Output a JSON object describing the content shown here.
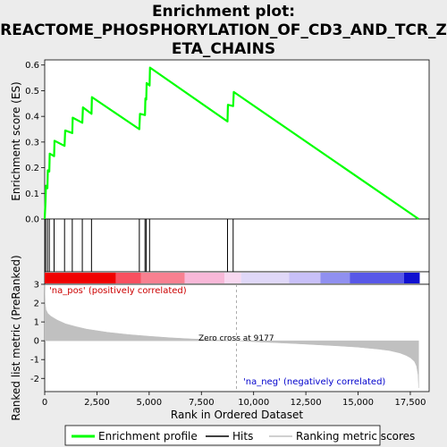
{
  "chart_data": {
    "type": "line",
    "title_line1": "Enrichment plot:",
    "title_line2": "REACTOME_PHOSPHORYLATION_OF_CD3_AND_TCR_Z",
    "title_line3": "ETA_CHAINS",
    "top_panel": {
      "ylabel": "Enrichment score (ES)",
      "ylim": [
        0,
        0.62
      ],
      "yticks": [
        0.0,
        0.1,
        0.2,
        0.3,
        0.4,
        0.5,
        0.6
      ],
      "ytick_labels": [
        "0.0",
        "0.1",
        "0.2",
        "0.3",
        "0.4",
        "0.5",
        "0.6"
      ],
      "grid": false,
      "series": [
        {
          "name": "Enrichment profile",
          "color": "#00ff00",
          "x": [
            0,
            40,
            60,
            130,
            150,
            220,
            240,
            450,
            470,
            950,
            980,
            1320,
            1340,
            1800,
            1830,
            2240,
            2260,
            4530,
            4560,
            4800,
            4820,
            4860,
            4880,
            5020,
            5040,
            8750,
            8770,
            9020,
            9050,
            17900
          ],
          "y": [
            0.0,
            0.07,
            0.13,
            0.12,
            0.19,
            0.185,
            0.255,
            0.245,
            0.305,
            0.285,
            0.345,
            0.335,
            0.395,
            0.375,
            0.435,
            0.41,
            0.475,
            0.35,
            0.41,
            0.405,
            0.47,
            0.465,
            0.53,
            0.52,
            0.59,
            0.38,
            0.445,
            0.44,
            0.495,
            0.0
          ]
        }
      ]
    },
    "hits": {
      "name": "Hits",
      "color": "#000000",
      "positions": [
        40,
        130,
        220,
        450,
        950,
        1320,
        1800,
        2240,
        4530,
        4800,
        4860,
        5020,
        8750,
        9020
      ]
    },
    "bottom_panel": {
      "ylabel": "Ranked list metric (PreRanked)",
      "xlabel": "Rank in Ordered Dataset",
      "ylim": [
        -2.7,
        3.0
      ],
      "yticks": [
        -2,
        -1,
        0,
        1,
        2,
        3
      ],
      "ytick_labels": [
        "-2",
        "-1",
        "0",
        "1",
        "2",
        "3"
      ],
      "xlim": [
        0,
        18400
      ],
      "xticks": [
        0,
        2500,
        5000,
        7500,
        10000,
        12500,
        15000,
        17500
      ],
      "xtick_labels": [
        "0",
        "2,500",
        "5,000",
        "7,500",
        "10,000",
        "12,500",
        "15,000",
        "17,500"
      ],
      "series": [
        {
          "name": "Ranking metric scores",
          "color": "#c0c0c0",
          "x": [
            0,
            20,
            60,
            150,
            300,
            600,
            1000,
            1500,
            2000,
            3000,
            4000,
            5000,
            6000,
            7000,
            8000,
            9177,
            10000,
            11000,
            12000,
            13000,
            14000,
            15000,
            16000,
            16500,
            17000,
            17300,
            17500,
            17700,
            17800,
            17870,
            17900
          ],
          "y": [
            3.0,
            2.0,
            1.65,
            1.45,
            1.3,
            1.1,
            0.9,
            0.75,
            0.62,
            0.45,
            0.33,
            0.24,
            0.16,
            0.1,
            0.05,
            0.0,
            -0.05,
            -0.1,
            -0.15,
            -0.21,
            -0.27,
            -0.34,
            -0.45,
            -0.52,
            -0.65,
            -0.78,
            -0.9,
            -1.1,
            -1.35,
            -1.8,
            -2.5
          ]
        }
      ],
      "zero_cross_label": "Zero cross at 9177",
      "zero_cross": 9177,
      "pos_label": "'na_pos' (positively correlated)",
      "neg_label": "'na_neg' (negatively correlated)",
      "pos_label_color": "#cc0000",
      "neg_label_color": "#0000cc"
    },
    "heat_bar": {
      "segments": [
        {
          "start": 0,
          "end": 3400,
          "color": "#f00000"
        },
        {
          "start": 3400,
          "end": 4600,
          "color": "#f85060"
        },
        {
          "start": 4600,
          "end": 6700,
          "color": "#f88090"
        },
        {
          "start": 6700,
          "end": 8600,
          "color": "#f8b8d8"
        },
        {
          "start": 8600,
          "end": 9400,
          "color": "#f8d8f0"
        },
        {
          "start": 9400,
          "end": 11700,
          "color": "#e0d8f8"
        },
        {
          "start": 11700,
          "end": 13200,
          "color": "#c8c0f8"
        },
        {
          "start": 13200,
          "end": 14600,
          "color": "#9090f0"
        },
        {
          "start": 14600,
          "end": 17200,
          "color": "#5858e8"
        },
        {
          "start": 17200,
          "end": 17950,
          "color": "#1010d0"
        }
      ]
    },
    "legend": {
      "placement": "bottom",
      "entries": [
        {
          "label": "Enrichment profile",
          "color": "#00ff00"
        },
        {
          "label": "Hits",
          "color": "#000000"
        },
        {
          "label": "Ranking metric scores",
          "color": "#c0c0c0"
        }
      ]
    }
  }
}
